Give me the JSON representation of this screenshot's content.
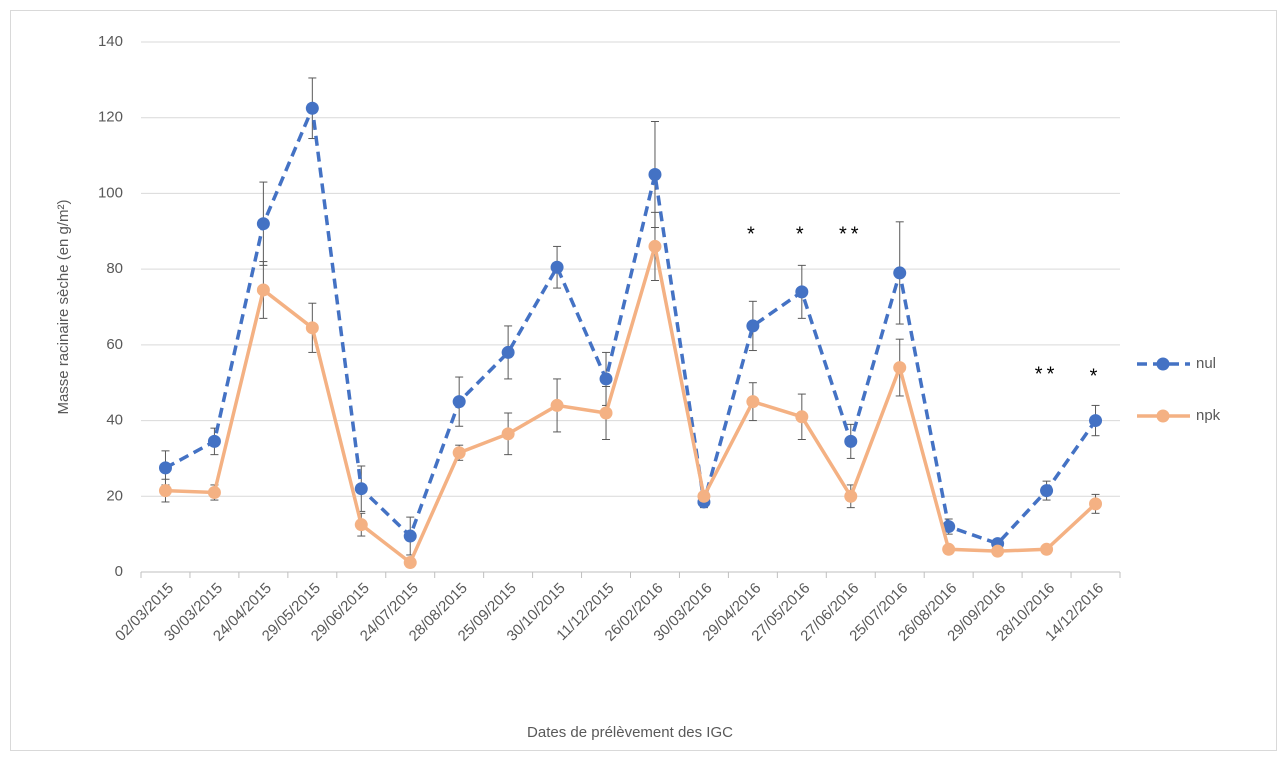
{
  "chart_data": {
    "type": "line",
    "x_label": "Dates de prélèvement des IGC",
    "y_label": "Masse racinaire sèche (en g/m²)",
    "categories": [
      "02/03/2015",
      "30/03/2015",
      "24/04/2015",
      "29/05/2015",
      "29/06/2015",
      "24/07/2015",
      "28/08/2015",
      "25/09/2015",
      "30/10/2015",
      "11/12/2015",
      "26/02/2016",
      "30/03/2016",
      "29/04/2016",
      "27/05/2016",
      "27/06/2016",
      "25/07/2016",
      "26/08/2016",
      "29/09/2016",
      "28/10/2016",
      "14/12/2016"
    ],
    "series": [
      {
        "name": "nul",
        "color": "#4472c4",
        "dashed": true,
        "values": [
          27.5,
          34.5,
          92,
          122.5,
          22,
          9.5,
          45,
          58,
          80.5,
          51,
          105,
          18.5,
          65,
          74,
          34.5,
          79,
          12,
          7.5,
          21.5,
          40
        ],
        "errors": [
          4.5,
          3.5,
          11,
          8,
          6,
          5,
          6.5,
          7,
          5.5,
          7,
          14,
          1.5,
          6.5,
          7,
          4.5,
          13.5,
          2,
          1,
          2.5,
          4
        ]
      },
      {
        "name": "npk",
        "color": "#f4b183",
        "dashed": false,
        "values": [
          21.5,
          21,
          74.5,
          64.5,
          12.5,
          2.5,
          31.5,
          36.5,
          44,
          42,
          86,
          20,
          45,
          41,
          20,
          54,
          6,
          5.5,
          6,
          18
        ],
        "errors": [
          3,
          2,
          7.5,
          6.5,
          3,
          1,
          2,
          5.5,
          7,
          7,
          9,
          1,
          5,
          6,
          3,
          7.5,
          1,
          0.5,
          0.5,
          2.5
        ]
      }
    ],
    "annotations": [
      {
        "text": "*",
        "x": "29/04/2016",
        "y": 89
      },
      {
        "text": "*",
        "x": "27/05/2016",
        "y": 89
      },
      {
        "text": "**",
        "x": "27/06/2016",
        "y": 89
      },
      {
        "text": "**",
        "x": "28/10/2016",
        "y": 52
      },
      {
        "text": "*",
        "x": "14/12/2016",
        "y": 51.5
      }
    ],
    "ylim": [
      0,
      140
    ],
    "yticks": [
      0,
      20,
      40,
      60,
      80,
      100,
      120,
      140
    ],
    "grid": true,
    "legend": "right"
  }
}
